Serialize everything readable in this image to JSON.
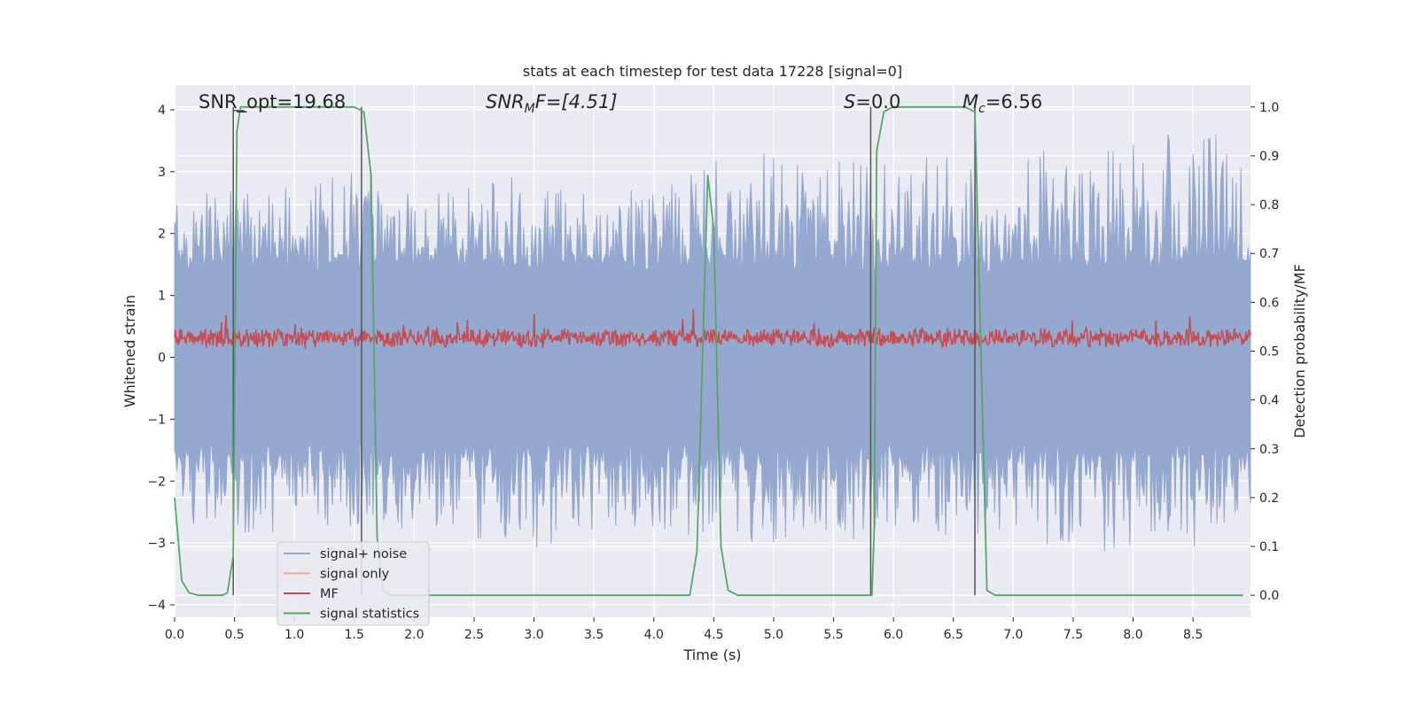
{
  "chart_data": {
    "type": "line",
    "title": "stats at each timestep for test data 17228 [signal=0]",
    "xlabel": "Time (s)",
    "ylabel_left": "Whitened strain",
    "ylabel_right": "Detection probability/MF",
    "xlim": [
      0,
      8.98
    ],
    "ylim_left": [
      -4.2,
      4.4
    ],
    "ylim_right": [
      -0.045,
      1.045
    ],
    "x_ticks": [
      0.0,
      0.5,
      1.0,
      1.5,
      2.0,
      2.5,
      3.0,
      3.5,
      4.0,
      4.5,
      5.0,
      5.5,
      6.0,
      6.5,
      7.0,
      7.5,
      8.0,
      8.5
    ],
    "x_tick_labels": [
      "0.0",
      "0.5",
      "1.0",
      "1.5",
      "2.0",
      "2.5",
      "3.0",
      "3.5",
      "4.0",
      "4.5",
      "5.0",
      "5.5",
      "6.0",
      "6.5",
      "7.0",
      "7.5",
      "8.0",
      "8.5"
    ],
    "y_left_ticks": [
      4,
      3,
      2,
      1,
      0,
      -1,
      -2,
      -3,
      -4
    ],
    "y_left_tick_labels": [
      "4",
      "3",
      "2",
      "1",
      "0",
      "−1",
      "−2",
      "−3",
      "−4"
    ],
    "y_right_ticks": [
      1.0,
      0.9,
      0.8,
      0.7,
      0.6,
      0.5,
      0.4,
      0.3,
      0.2,
      0.1,
      0.0
    ],
    "y_right_tick_labels": [
      "1.0",
      "0.9",
      "0.8",
      "0.7",
      "0.6",
      "0.5",
      "0.4",
      "0.3",
      "0.2",
      "0.1",
      "0.0"
    ],
    "grid": true,
    "legend_placement": "lower-left",
    "legend": [
      {
        "label": "signal+ noise",
        "color": "#95a8cf"
      },
      {
        "label": "signal only",
        "color": "#eea98f"
      },
      {
        "label": "MF",
        "color": "#c44e52"
      },
      {
        "label": "signal statistics",
        "color": "#55a868"
      }
    ],
    "annotations": [
      {
        "text": "SNR_opt=19.68",
        "italic": false
      },
      {
        "text": "SNR",
        "sub": "M",
        "tail": "F=[4.51]",
        "italic": true
      },
      {
        "text": "S",
        "sub": "",
        "tail": "=0.0",
        "italic": true
      },
      {
        "text": "M",
        "sub": "c",
        "tail": "=6.56",
        "italic": true
      }
    ],
    "noise_envelope": {
      "x": [
        0.0,
        0.5,
        1.0,
        1.5,
        2.0,
        2.5,
        3.0,
        3.5,
        4.0,
        4.5,
        5.0,
        5.5,
        6.0,
        6.5,
        7.0,
        7.5,
        8.0,
        8.5,
        8.98
      ],
      "upper": [
        2.4,
        2.7,
        2.6,
        2.9,
        2.6,
        2.7,
        2.8,
        2.6,
        2.7,
        3.0,
        3.1,
        3.0,
        3.2,
        3.1,
        3.3,
        3.2,
        3.4,
        3.6,
        3.2
      ],
      "lower": [
        -2.4,
        -2.8,
        -2.6,
        -2.7,
        -2.6,
        -2.8,
        -2.9,
        -2.7,
        -2.7,
        -2.8,
        -2.9,
        -2.8,
        -2.8,
        -2.9,
        -2.8,
        -2.9,
        -2.9,
        -3.0,
        -2.6
      ]
    },
    "mf_band": {
      "base": 0.5,
      "amplitude": 0.03,
      "max_peak": 0.58
    },
    "signal_statistics": {
      "x": [
        0.0,
        0.06,
        0.12,
        0.2,
        0.3,
        0.4,
        0.44,
        0.49,
        0.52,
        0.55,
        0.58,
        1.5,
        1.58,
        1.64,
        1.69,
        1.74,
        1.8,
        1.9,
        2.2,
        4.3,
        4.36,
        4.45,
        4.5,
        4.56,
        4.62,
        4.7,
        5.82,
        5.84,
        5.86,
        5.92,
        5.99,
        6.6,
        6.68,
        6.73,
        6.78,
        6.85,
        6.95,
        8.92
      ],
      "y": [
        0.2,
        0.03,
        0.005,
        0.0,
        0.0,
        0.0,
        0.005,
        0.08,
        0.95,
        1.0,
        1.0,
        1.0,
        0.99,
        0.86,
        0.12,
        0.01,
        0.0,
        0.0,
        0.0,
        0.0,
        0.09,
        0.86,
        0.75,
        0.1,
        0.01,
        0.0,
        0.0,
        0.14,
        0.91,
        0.99,
        1.0,
        1.0,
        0.99,
        0.5,
        0.01,
        0.0,
        0.0,
        0.0
      ]
    },
    "vertical_lines": {
      "x": [
        0.49,
        1.56,
        5.81,
        6.68
      ],
      "y_right_range": [
        0.0,
        1.0
      ],
      "color": "#555555"
    }
  }
}
